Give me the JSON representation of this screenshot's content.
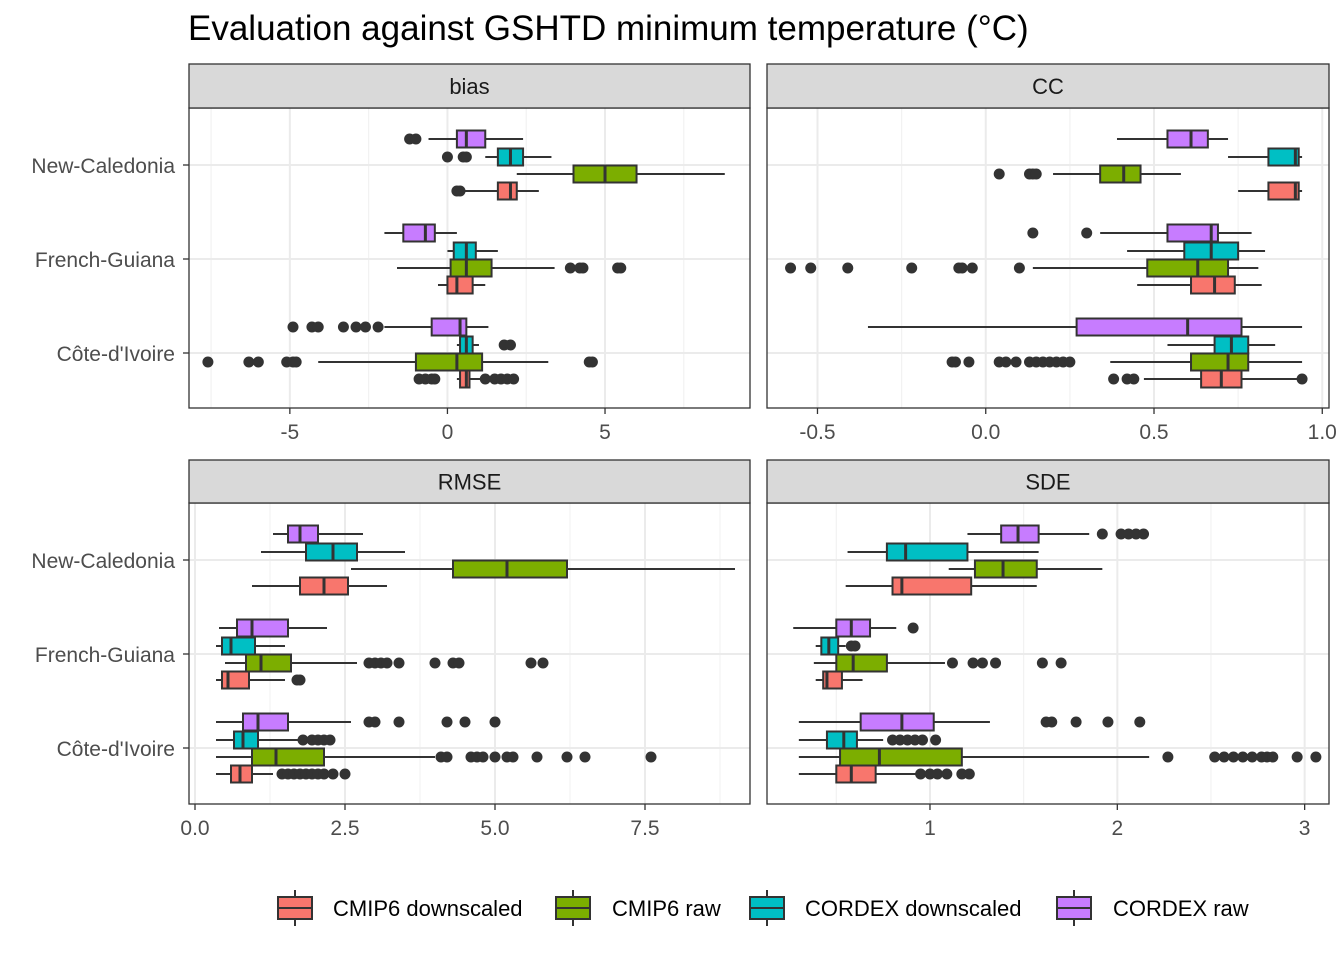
{
  "title": "Evaluation against GSHTD minimum temperature (°C)",
  "legend": {
    "placement": "bottom",
    "items": [
      {
        "label": "CMIP6 downscaled",
        "color": "#F8766D"
      },
      {
        "label": "CMIP6 raw",
        "color": "#7CAE00"
      },
      {
        "label": "CORDEX downscaled",
        "color": "#00BFC4"
      },
      {
        "label": "CORDEX raw",
        "color": "#C77CFF"
      }
    ]
  },
  "chart_data": {
    "type": "boxplot",
    "orientation": "horizontal",
    "grid": true,
    "regions": [
      "New-Caledonia",
      "French-Guiana",
      "Côte-d'Ivoire"
    ],
    "series_order": [
      "CMIP6 downscaled",
      "CMIP6 raw",
      "CORDEX downscaled",
      "CORDEX raw"
    ],
    "panels": [
      {
        "name": "bias",
        "xlim": [
          -8.2,
          9.6
        ],
        "ticks": [
          -5,
          0,
          5
        ],
        "tick_labels": [
          "-5",
          "0",
          "5"
        ],
        "minor_ticks": [
          -7.5,
          -2.5,
          2.5,
          7.5
        ],
        "boxes": {
          "New-Caledonia": [
            {
              "series": "CMIP6 downscaled",
              "wmin": 0.3,
              "q1": 1.6,
              "median": 2.0,
              "q3": 2.2,
              "wmax": 2.9,
              "outliers": [
                0.3,
                0.4
              ]
            },
            {
              "series": "CMIP6 raw",
              "wmin": 2.2,
              "q1": 4.0,
              "median": 5.0,
              "q3": 6.0,
              "wmax": 8.8,
              "outliers": []
            },
            {
              "series": "CORDEX downscaled",
              "wmin": 1.2,
              "q1": 1.6,
              "median": 2.0,
              "q3": 2.4,
              "wmax": 3.3,
              "outliers": [
                0.0,
                0.5,
                0.6
              ]
            },
            {
              "series": "CORDEX raw",
              "wmin": -0.6,
              "q1": 0.3,
              "median": 0.6,
              "q3": 1.2,
              "wmax": 2.4,
              "outliers": [
                -1.2,
                -1.0
              ]
            }
          ],
          "French-Guiana": [
            {
              "series": "CMIP6 downscaled",
              "wmin": -0.3,
              "q1": 0.0,
              "median": 0.3,
              "q3": 0.8,
              "wmax": 1.2,
              "outliers": []
            },
            {
              "series": "CMIP6 raw",
              "wmin": -1.6,
              "q1": 0.1,
              "median": 0.6,
              "q3": 1.4,
              "wmax": 3.4,
              "outliers": [
                3.9,
                4.2,
                4.3,
                5.4,
                5.5
              ]
            },
            {
              "series": "CORDEX downscaled",
              "wmin": 0.0,
              "q1": 0.2,
              "median": 0.6,
              "q3": 0.9,
              "wmax": 1.6,
              "outliers": []
            },
            {
              "series": "CORDEX raw",
              "wmin": -2.0,
              "q1": -1.4,
              "median": -0.7,
              "q3": -0.4,
              "wmax": 0.3,
              "outliers": []
            }
          ],
          "Côte-d'Ivoire": [
            {
              "series": "CMIP6 downscaled",
              "wmin": 0.3,
              "q1": 0.4,
              "median": 0.6,
              "q3": 0.7,
              "wmax": 1.1,
              "outliers": [
                -0.9,
                -0.7,
                -0.5,
                -0.4,
                1.2,
                1.5,
                1.7,
                1.9,
                2.1
              ]
            },
            {
              "series": "CMIP6 raw",
              "wmin": -4.1,
              "q1": -1.0,
              "median": 0.3,
              "q3": 1.1,
              "wmax": 3.2,
              "outliers": [
                -7.6,
                -6.3,
                -6.0,
                -5.1,
                -4.9,
                -4.8,
                4.5,
                4.6
              ]
            },
            {
              "series": "CORDEX downscaled",
              "wmin": 0.3,
              "q1": 0.4,
              "median": 0.6,
              "q3": 0.8,
              "wmax": 1.0,
              "outliers": [
                1.8,
                2.0
              ]
            },
            {
              "series": "CORDEX raw",
              "wmin": -2.0,
              "q1": -0.5,
              "median": 0.4,
              "q3": 0.6,
              "wmax": 1.3,
              "outliers": [
                -4.9,
                -4.3,
                -4.1,
                -3.3,
                -2.9,
                -2.6,
                -2.2
              ]
            }
          ]
        }
      },
      {
        "name": "CC",
        "xlim": [
          -0.65,
          1.02
        ],
        "ticks": [
          -0.5,
          0.0,
          0.5,
          1.0
        ],
        "tick_labels": [
          "-0.5",
          "0.0",
          "0.5",
          "1.0"
        ],
        "minor_ticks": [
          -0.25,
          0.25,
          0.75
        ],
        "boxes": {
          "New-Caledonia": [
            {
              "series": "CMIP6 downscaled",
              "wmin": 0.75,
              "q1": 0.84,
              "median": 0.92,
              "q3": 0.93,
              "wmax": 0.94,
              "outliers": []
            },
            {
              "series": "CMIP6 raw",
              "wmin": 0.2,
              "q1": 0.34,
              "median": 0.41,
              "q3": 0.46,
              "wmax": 0.58,
              "outliers": [
                0.04,
                0.13,
                0.14,
                0.15
              ]
            },
            {
              "series": "CORDEX downscaled",
              "wmin": 0.72,
              "q1": 0.84,
              "median": 0.92,
              "q3": 0.93,
              "wmax": 0.94,
              "outliers": []
            },
            {
              "series": "CORDEX raw",
              "wmin": 0.39,
              "q1": 0.54,
              "median": 0.61,
              "q3": 0.66,
              "wmax": 0.72,
              "outliers": []
            }
          ],
          "French-Guiana": [
            {
              "series": "CMIP6 downscaled",
              "wmin": 0.45,
              "q1": 0.61,
              "median": 0.68,
              "q3": 0.74,
              "wmax": 0.82,
              "outliers": []
            },
            {
              "series": "CMIP6 raw",
              "wmin": 0.14,
              "q1": 0.48,
              "median": 0.63,
              "q3": 0.72,
              "wmax": 0.81,
              "outliers": [
                -0.58,
                -0.52,
                -0.41,
                -0.22,
                -0.08,
                -0.07,
                -0.04,
                0.1
              ]
            },
            {
              "series": "CORDEX downscaled",
              "wmin": 0.42,
              "q1": 0.59,
              "median": 0.67,
              "q3": 0.75,
              "wmax": 0.83,
              "outliers": []
            },
            {
              "series": "CORDEX raw",
              "wmin": 0.34,
              "q1": 0.54,
              "median": 0.67,
              "q3": 0.69,
              "wmax": 0.79,
              "outliers": [
                0.14,
                0.3
              ]
            }
          ],
          "Côte-d'Ivoire": [
            {
              "series": "CMIP6 downscaled",
              "wmin": 0.47,
              "q1": 0.64,
              "median": 0.7,
              "q3": 0.76,
              "wmax": 0.94,
              "outliers": [
                0.38,
                0.42,
                0.44,
                0.94
              ]
            },
            {
              "series": "CMIP6 raw",
              "wmin": 0.37,
              "q1": 0.61,
              "median": 0.72,
              "q3": 0.78,
              "wmax": 0.94,
              "outliers": [
                -0.1,
                -0.09,
                -0.05,
                0.04,
                0.06,
                0.09,
                0.13,
                0.15,
                0.17,
                0.19,
                0.21,
                0.23,
                0.25
              ]
            },
            {
              "series": "CORDEX downscaled",
              "wmin": 0.54,
              "q1": 0.68,
              "median": 0.73,
              "q3": 0.78,
              "wmax": 0.86,
              "outliers": []
            },
            {
              "series": "CORDEX raw",
              "wmin": -0.35,
              "q1": 0.27,
              "median": 0.6,
              "q3": 0.76,
              "wmax": 0.94,
              "outliers": []
            }
          ]
        }
      },
      {
        "name": "RMSE",
        "xlim": [
          -0.1,
          9.25
        ],
        "ticks": [
          0.0,
          2.5,
          5.0,
          7.5
        ],
        "tick_labels": [
          "0.0",
          "2.5",
          "5.0",
          "7.5"
        ],
        "minor_ticks": [
          1.25,
          3.75,
          6.25,
          8.75
        ],
        "boxes": {
          "New-Caledonia": [
            {
              "series": "CMIP6 downscaled",
              "wmin": 0.95,
              "q1": 1.75,
              "median": 2.15,
              "q3": 2.55,
              "wmax": 3.2,
              "outliers": []
            },
            {
              "series": "CMIP6 raw",
              "wmin": 2.6,
              "q1": 4.3,
              "median": 5.2,
              "q3": 6.2,
              "wmax": 9.0,
              "outliers": []
            },
            {
              "series": "CORDEX downscaled",
              "wmin": 1.1,
              "q1": 1.85,
              "median": 2.3,
              "q3": 2.7,
              "wmax": 3.5,
              "outliers": []
            },
            {
              "series": "CORDEX raw",
              "wmin": 1.3,
              "q1": 1.55,
              "median": 1.75,
              "q3": 2.05,
              "wmax": 2.8,
              "outliers": []
            }
          ],
          "French-Guiana": [
            {
              "series": "CMIP6 downscaled",
              "wmin": 0.35,
              "q1": 0.45,
              "median": 0.55,
              "q3": 0.9,
              "wmax": 1.5,
              "outliers": [
                1.7,
                1.75
              ]
            },
            {
              "series": "CMIP6 raw",
              "wmin": 0.5,
              "q1": 0.85,
              "median": 1.1,
              "q3": 1.6,
              "wmax": 2.7,
              "outliers": [
                2.9,
                3.0,
                3.1,
                3.2,
                3.4,
                4.0,
                4.3,
                4.4,
                5.6,
                5.8
              ]
            },
            {
              "series": "CORDEX downscaled",
              "wmin": 0.35,
              "q1": 0.45,
              "median": 0.6,
              "q3": 1.0,
              "wmax": 1.5,
              "outliers": []
            },
            {
              "series": "CORDEX raw",
              "wmin": 0.4,
              "q1": 0.7,
              "median": 0.95,
              "q3": 1.55,
              "wmax": 2.2,
              "outliers": []
            }
          ],
          "Côte-d'Ivoire": [
            {
              "series": "CMIP6 downscaled",
              "wmin": 0.35,
              "q1": 0.6,
              "median": 0.75,
              "q3": 0.95,
              "wmax": 1.3,
              "outliers": [
                1.45,
                1.55,
                1.65,
                1.75,
                1.85,
                1.95,
                2.05,
                2.15,
                2.3,
                2.5
              ]
            },
            {
              "series": "CMIP6 raw",
              "wmin": 0.35,
              "q1": 0.95,
              "median": 1.35,
              "q3": 2.15,
              "wmax": 4.0,
              "outliers": [
                4.1,
                4.2,
                4.6,
                4.7,
                4.8,
                5.0,
                5.2,
                5.3,
                5.7,
                6.2,
                6.5,
                7.6
              ]
            },
            {
              "series": "CORDEX downscaled",
              "wmin": 0.35,
              "q1": 0.65,
              "median": 0.8,
              "q3": 1.05,
              "wmax": 1.75,
              "outliers": [
                1.8,
                1.95,
                2.05,
                2.15,
                2.25
              ]
            },
            {
              "series": "CORDEX raw",
              "wmin": 0.35,
              "q1": 0.8,
              "median": 1.05,
              "q3": 1.55,
              "wmax": 2.6,
              "outliers": [
                2.9,
                3.0,
                3.4,
                4.2,
                4.5,
                5.0
              ]
            }
          ]
        }
      },
      {
        "name": "SDE",
        "xlim": [
          0.13,
          3.13
        ],
        "ticks": [
          1,
          2,
          3
        ],
        "tick_labels": [
          "1",
          "2",
          "3"
        ],
        "minor_ticks": [
          0.5,
          1.5,
          2.5
        ],
        "boxes": {
          "New-Caledonia": [
            {
              "series": "CMIP6 downscaled",
              "wmin": 0.55,
              "q1": 0.8,
              "median": 0.85,
              "q3": 1.22,
              "wmax": 1.57,
              "outliers": []
            },
            {
              "series": "CMIP6 raw",
              "wmin": 1.1,
              "q1": 1.24,
              "median": 1.39,
              "q3": 1.57,
              "wmax": 1.92,
              "outliers": []
            },
            {
              "series": "CORDEX downscaled",
              "wmin": 0.56,
              "q1": 0.77,
              "median": 0.87,
              "q3": 1.2,
              "wmax": 1.58,
              "outliers": []
            },
            {
              "series": "CORDEX raw",
              "wmin": 1.2,
              "q1": 1.38,
              "median": 1.47,
              "q3": 1.58,
              "wmax": 1.85,
              "outliers": [
                1.92,
                2.02,
                2.06,
                2.1,
                2.14
              ]
            }
          ],
          "French-Guiana": [
            {
              "series": "CMIP6 downscaled",
              "wmin": 0.39,
              "q1": 0.43,
              "median": 0.45,
              "q3": 0.53,
              "wmax": 0.64,
              "outliers": []
            },
            {
              "series": "CMIP6 raw",
              "wmin": 0.38,
              "q1": 0.5,
              "median": 0.59,
              "q3": 0.77,
              "wmax": 1.08,
              "outliers": [
                1.12,
                1.23,
                1.28,
                1.35,
                1.6,
                1.7
              ]
            },
            {
              "series": "CORDEX downscaled",
              "wmin": 0.39,
              "q1": 0.42,
              "median": 0.46,
              "q3": 0.51,
              "wmax": 0.55,
              "outliers": [
                0.58,
                0.6
              ]
            },
            {
              "series": "CORDEX raw",
              "wmin": 0.27,
              "q1": 0.5,
              "median": 0.58,
              "q3": 0.68,
              "wmax": 0.82,
              "outliers": [
                0.91
              ]
            }
          ],
          "Côte-d'Ivoire": [
            {
              "series": "CMIP6 downscaled",
              "wmin": 0.3,
              "q1": 0.5,
              "median": 0.58,
              "q3": 0.71,
              "wmax": 0.93,
              "outliers": [
                0.95,
                1.0,
                1.04,
                1.09,
                1.17,
                1.21
              ]
            },
            {
              "series": "CMIP6 raw",
              "wmin": 0.3,
              "q1": 0.52,
              "median": 0.73,
              "q3": 1.17,
              "wmax": 2.17,
              "outliers": [
                2.27,
                2.52,
                2.57,
                2.62,
                2.67,
                2.72,
                2.77,
                2.8,
                2.83,
                2.96,
                3.06
              ]
            },
            {
              "series": "CORDEX downscaled",
              "wmin": 0.3,
              "q1": 0.45,
              "median": 0.54,
              "q3": 0.61,
              "wmax": 0.75,
              "outliers": [
                0.8,
                0.84,
                0.88,
                0.92,
                0.96,
                1.03
              ]
            },
            {
              "series": "CORDEX raw",
              "wmin": 0.3,
              "q1": 0.63,
              "median": 0.85,
              "q3": 1.02,
              "wmax": 1.32,
              "outliers": [
                1.62,
                1.65,
                1.78,
                1.95,
                2.12
              ]
            }
          ]
        }
      }
    ]
  }
}
